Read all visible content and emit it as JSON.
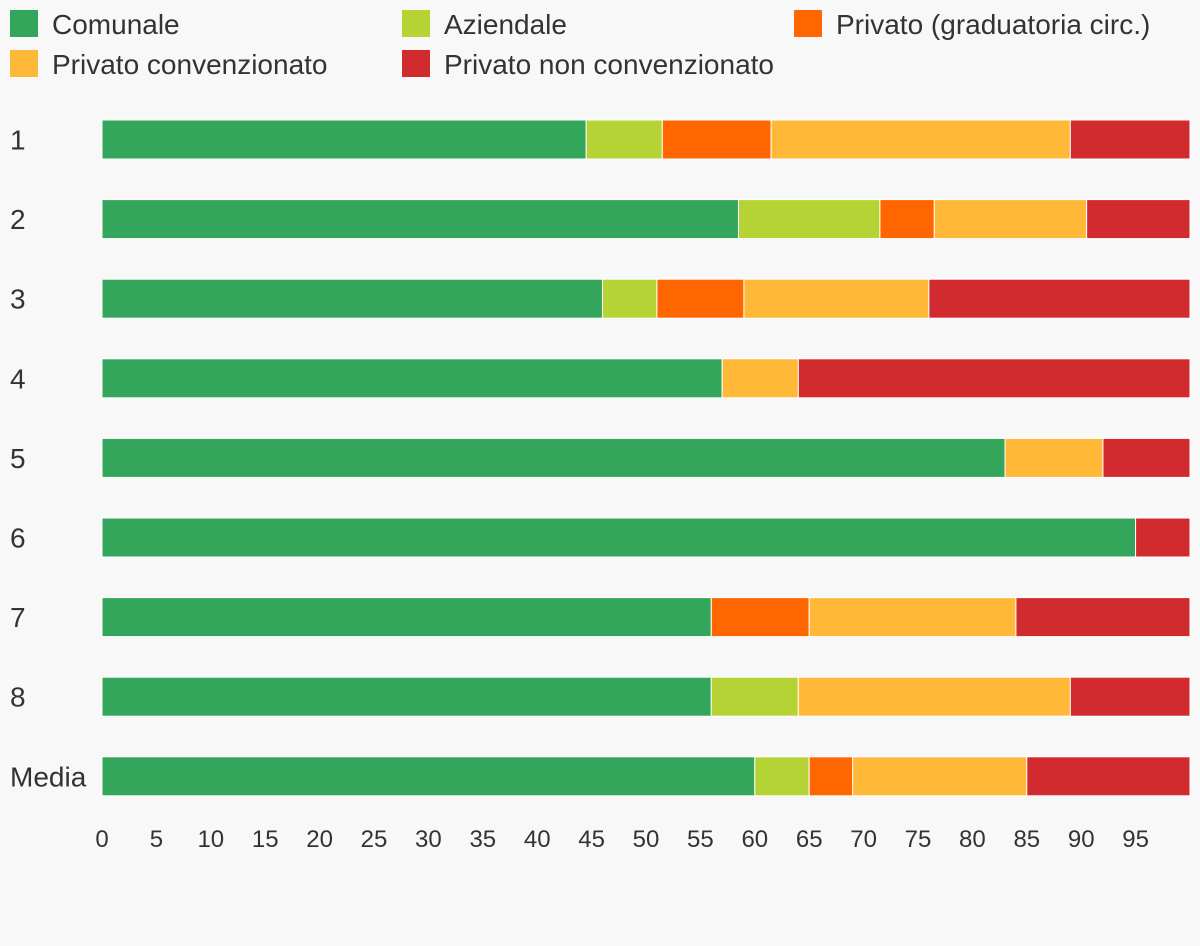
{
  "chart_data": {
    "type": "bar",
    "orientation": "horizontal",
    "stacked": true,
    "categories": [
      "1",
      "2",
      "3",
      "4",
      "5",
      "6",
      "7",
      "8",
      "Media"
    ],
    "series": [
      {
        "name": "Comunale",
        "color": "#34a65c",
        "values": [
          44.5,
          58.5,
          46,
          57,
          83,
          95,
          56,
          56,
          60
        ]
      },
      {
        "name": "Aziendale",
        "color": "#b5d334",
        "values": [
          7,
          13,
          5,
          0,
          0,
          0,
          0,
          8,
          5
        ]
      },
      {
        "name": "Privato (graduatoria circ.)",
        "color": "#ff6600",
        "values": [
          10,
          5,
          8,
          0,
          0,
          0,
          9,
          0,
          4
        ]
      },
      {
        "name": "Privato convenzionato",
        "color": "#ffb838",
        "values": [
          27.5,
          14,
          17,
          7,
          9,
          0,
          19,
          25,
          16
        ]
      },
      {
        "name": "Privato non convenzionato",
        "color": "#d22b2f",
        "values": [
          11,
          9.5,
          24,
          36,
          8,
          5,
          16,
          11,
          15
        ]
      }
    ],
    "xlim": [
      0,
      100
    ],
    "xticks": [
      "0",
      "5",
      "10",
      "15",
      "20",
      "25",
      "30",
      "35",
      "40",
      "45",
      "50",
      "55",
      "60",
      "65",
      "70",
      "75",
      "80",
      "85",
      "90",
      "95"
    ],
    "xtick_values": [
      0,
      5,
      10,
      15,
      20,
      25,
      30,
      35,
      40,
      45,
      50,
      55,
      60,
      65,
      70,
      75,
      80,
      85,
      90,
      95
    ],
    "title": "",
    "xlabel": "",
    "ylabel": "",
    "legend_position": "top",
    "grid": false
  }
}
